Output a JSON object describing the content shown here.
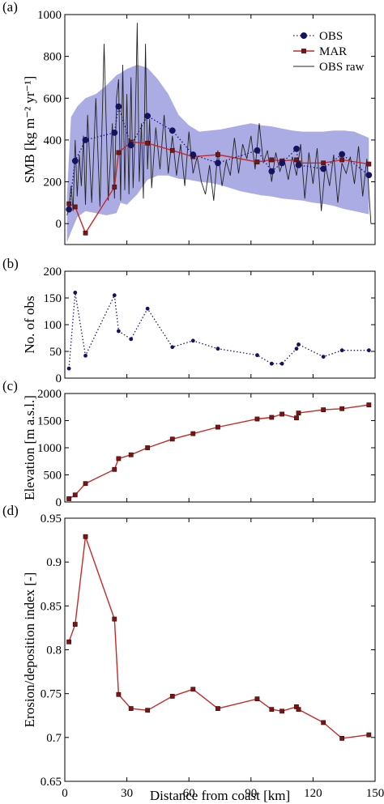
{
  "figure": {
    "xlabel": "Distance from coast [km]",
    "xlim": [
      0,
      150
    ],
    "xticks": [
      0,
      30,
      60,
      90,
      120,
      150
    ]
  },
  "chart_data": [
    {
      "panel_label": "(a)",
      "type": "line",
      "ylabel": "SMB [kg m⁻² yr⁻¹]",
      "ylim": [
        -100,
        1000
      ],
      "yticks": [
        0,
        200,
        400,
        600,
        800,
        1000
      ],
      "legend_position": "top-right",
      "band": {
        "x": [
          1,
          3,
          6,
          10,
          15,
          20,
          25,
          27,
          30,
          35,
          40,
          45,
          50,
          55,
          60,
          65,
          70,
          75,
          80,
          85,
          90,
          95,
          100,
          105,
          110,
          115,
          120,
          125,
          130,
          135,
          140,
          147
        ],
        "lo": [
          -90,
          -40,
          30,
          60,
          50,
          40,
          50,
          100,
          90,
          140,
          210,
          230,
          230,
          215,
          210,
          200,
          195,
          185,
          170,
          155,
          145,
          135,
          130,
          120,
          115,
          110,
          100,
          95,
          85,
          70,
          60,
          45
        ],
        "hi": [
          130,
          510,
          560,
          600,
          620,
          660,
          710,
          720,
          740,
          760,
          745,
          690,
          620,
          520,
          470,
          440,
          445,
          450,
          460,
          470,
          480,
          470,
          465,
          455,
          445,
          440,
          440,
          440,
          445,
          445,
          440,
          410
        ]
      },
      "series": [
        {
          "name": "OBS",
          "style": "dotted-circle",
          "color": "#1a1a6e",
          "x": [
            2,
            5,
            10,
            24,
            26,
            32,
            40,
            52,
            62,
            74,
            93,
            100,
            105,
            112,
            113,
            125,
            134,
            147
          ],
          "values": [
            68,
            300,
            400,
            435,
            560,
            375,
            515,
            445,
            330,
            290,
            350,
            250,
            290,
            358,
            280,
            262,
            332,
            232
          ]
        },
        {
          "name": "MAR",
          "style": "solid-square",
          "color": "#c42a2a",
          "x": [
            2,
            5,
            10,
            24,
            26,
            32,
            40,
            52,
            62,
            74,
            93,
            100,
            105,
            112,
            113,
            125,
            134,
            147
          ],
          "values": [
            95,
            80,
            -45,
            175,
            340,
            390,
            385,
            350,
            320,
            330,
            295,
            305,
            300,
            305,
            290,
            290,
            305,
            285
          ]
        },
        {
          "name": "OBS raw",
          "style": "thin-line",
          "color": "#222222",
          "x": [
            1,
            2,
            3,
            4,
            5,
            6,
            7,
            8,
            9,
            10,
            11,
            13,
            15,
            17,
            19,
            21,
            23,
            24,
            25,
            26,
            27,
            28,
            29,
            30,
            31,
            32,
            33,
            34,
            35,
            36,
            37,
            38,
            39,
            40,
            41,
            42,
            44,
            46,
            48,
            50,
            52,
            54,
            56,
            58,
            60,
            62,
            64,
            66,
            68,
            70,
            72,
            74,
            76,
            78,
            80,
            82,
            84,
            86,
            88,
            90,
            92,
            94,
            96,
            98,
            100,
            102,
            104,
            106,
            108,
            110,
            112,
            114,
            116,
            118,
            120,
            122,
            124,
            126,
            128,
            130,
            132,
            134,
            136,
            138,
            140,
            142,
            144,
            146,
            148
          ],
          "values": [
            40,
            70,
            180,
            60,
            400,
            130,
            330,
            180,
            420,
            90,
            520,
            100,
            600,
            80,
            860,
            110,
            480,
            120,
            600,
            690,
            110,
            760,
            160,
            620,
            140,
            700,
            170,
            440,
            960,
            200,
            480,
            120,
            860,
            260,
            500,
            170,
            460,
            260,
            520,
            240,
            420,
            230,
            380,
            180,
            440,
            240,
            320,
            200,
            140,
            280,
            110,
            350,
            180,
            300,
            230,
            410,
            240,
            380,
            310,
            420,
            260,
            480,
            290,
            350,
            200,
            340,
            250,
            310,
            210,
            320,
            230,
            380,
            120,
            340,
            190,
            360,
            60,
            280,
            180,
            330,
            100,
            290,
            240,
            320,
            190,
            370,
            130,
            310,
            0
          ]
        }
      ]
    },
    {
      "panel_label": "(b)",
      "type": "line",
      "ylabel": "No. of obs",
      "ylim": [
        0,
        200
      ],
      "yticks": [
        0,
        50,
        100,
        150,
        200
      ],
      "series": [
        {
          "style": "dotted-dot",
          "color": "#1a1a6e",
          "x": [
            2,
            5,
            10,
            24,
            26,
            32,
            40,
            52,
            62,
            74,
            93,
            100,
            105,
            112,
            113,
            125,
            134,
            147
          ],
          "values": [
            18,
            160,
            42,
            155,
            88,
            73,
            130,
            58,
            70,
            55,
            43,
            27,
            27,
            55,
            63,
            40,
            52,
            52
          ]
        }
      ]
    },
    {
      "panel_label": "(c)",
      "type": "line",
      "ylabel": "Elevation [m a.s.l.]",
      "ylim": [
        0,
        2000
      ],
      "yticks": [
        0,
        500,
        1000,
        1500,
        2000
      ],
      "series": [
        {
          "style": "solid-square",
          "color": "#c42a2a",
          "x": [
            2,
            5,
            10,
            24,
            26,
            32,
            40,
            52,
            62,
            74,
            93,
            100,
            105,
            112,
            113,
            125,
            134,
            147
          ],
          "values": [
            60,
            130,
            340,
            600,
            800,
            870,
            1000,
            1160,
            1260,
            1380,
            1530,
            1560,
            1620,
            1550,
            1640,
            1700,
            1720,
            1790
          ]
        }
      ]
    },
    {
      "panel_label": "(d)",
      "type": "line",
      "ylabel": "Erosion/deposition index [-]",
      "ylim": [
        0.65,
        0.95
      ],
      "yticks": [
        0.65,
        0.7,
        0.75,
        0.8,
        0.85,
        0.9,
        0.95
      ],
      "ytick_labels": [
        "0.65",
        "0.7",
        "0.75",
        "0.8",
        "0.85",
        "0.9",
        "0.95"
      ],
      "series": [
        {
          "style": "solid-square",
          "color": "#c42a2a",
          "x": [
            2,
            5,
            10,
            24,
            26,
            32,
            40,
            52,
            62,
            74,
            93,
            100,
            105,
            112,
            113,
            125,
            134,
            147
          ],
          "values": [
            0.809,
            0.829,
            0.929,
            0.835,
            0.749,
            0.733,
            0.731,
            0.747,
            0.755,
            0.733,
            0.744,
            0.732,
            0.73,
            0.735,
            0.732,
            0.717,
            0.699,
            0.703
          ]
        }
      ]
    }
  ]
}
